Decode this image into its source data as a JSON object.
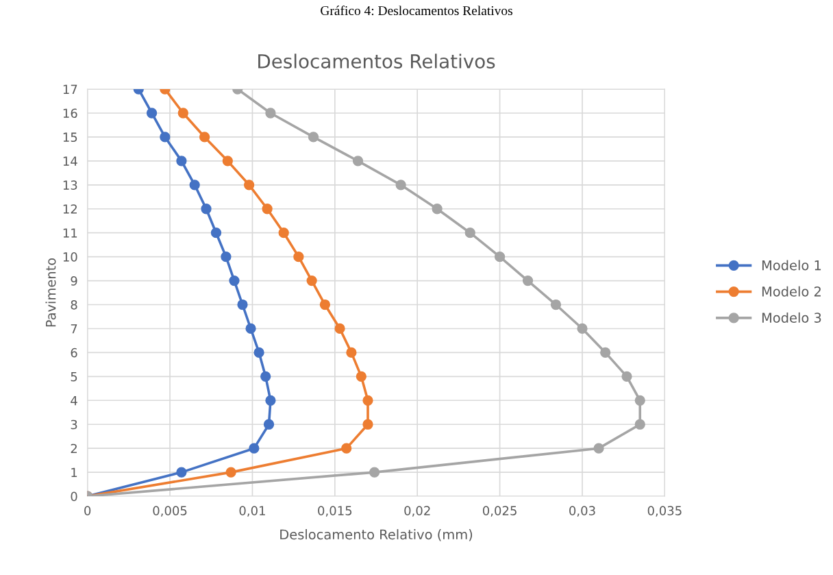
{
  "chart_data": {
    "type": "line",
    "title": "Deslocamentos Relativos",
    "xlabel": "Deslocamento Relativo (mm)",
    "ylabel": "Pavimento",
    "annotations": [
      "Gráfico 4: Deslocamentos Relativos"
    ],
    "xlim": [
      0,
      0.035
    ],
    "xticks": [
      {
        "value": 0,
        "label": "0"
      },
      {
        "value": 0.005,
        "label": "0,005"
      },
      {
        "value": 0.01,
        "label": "0,01"
      },
      {
        "value": 0.015,
        "label": "0,015"
      },
      {
        "value": 0.02,
        "label": "0,02"
      },
      {
        "value": 0.025,
        "label": "0,025"
      },
      {
        "value": 0.03,
        "label": "0,03"
      },
      {
        "value": 0.035,
        "label": "0,035"
      }
    ],
    "ylim": [
      0,
      17
    ],
    "yticks": [
      0,
      1,
      2,
      3,
      4,
      5,
      6,
      7,
      8,
      9,
      10,
      11,
      12,
      13,
      14,
      15,
      16,
      17
    ],
    "grid": true,
    "legend": "right",
    "marker": "circle",
    "line_style": "solid",
    "series": [
      {
        "name": "Modelo 1",
        "color": "#4472c4",
        "x": [
          0,
          0.0057,
          0.0101,
          0.011,
          0.0111,
          0.0108,
          0.0104,
          0.0099,
          0.0094,
          0.0089,
          0.0084,
          0.0078,
          0.0072,
          0.0065,
          0.0057,
          0.0047,
          0.0039,
          0.0031
        ],
        "values": [
          0,
          1,
          2,
          3,
          4,
          5,
          6,
          7,
          8,
          9,
          10,
          11,
          12,
          13,
          14,
          15,
          16,
          17
        ]
      },
      {
        "name": "Modelo 2",
        "color": "#ed7d31",
        "x": [
          0,
          0.0087,
          0.0157,
          0.017,
          0.017,
          0.0166,
          0.016,
          0.0153,
          0.0144,
          0.0136,
          0.0128,
          0.0119,
          0.0109,
          0.0098,
          0.0085,
          0.0071,
          0.0058,
          0.0047
        ],
        "values": [
          0,
          1,
          2,
          3,
          4,
          5,
          6,
          7,
          8,
          9,
          10,
          11,
          12,
          13,
          14,
          15,
          16,
          17
        ]
      },
      {
        "name": "Modelo 3",
        "color": "#a5a5a5",
        "x": [
          0,
          0.0174,
          0.031,
          0.0335,
          0.0335,
          0.0327,
          0.0314,
          0.03,
          0.0284,
          0.0267,
          0.025,
          0.0232,
          0.0212,
          0.019,
          0.0164,
          0.0137,
          0.0111,
          0.0091
        ],
        "values": [
          0,
          1,
          2,
          3,
          4,
          5,
          6,
          7,
          8,
          9,
          10,
          11,
          12,
          13,
          14,
          15,
          16,
          17
        ]
      }
    ]
  }
}
